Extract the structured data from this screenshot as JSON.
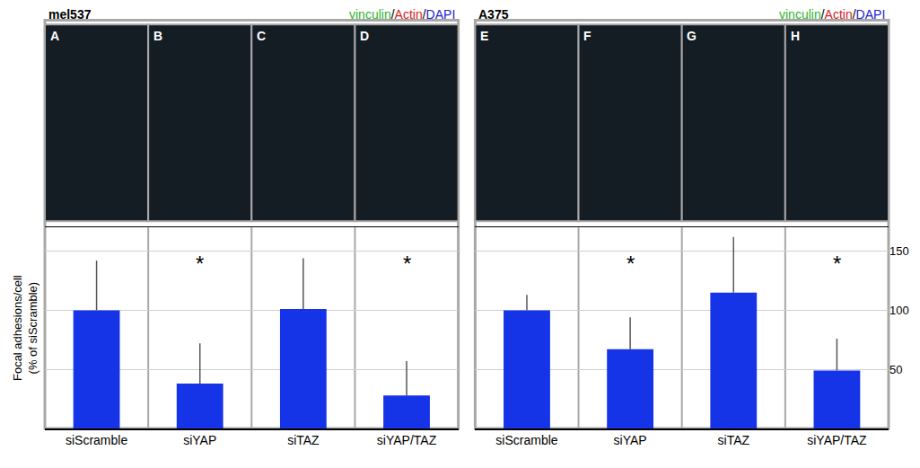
{
  "chart_data": [
    {
      "type": "bar",
      "title": "mel537",
      "stain_label": [
        {
          "text": "vinculin",
          "color": "#2fb52f"
        },
        {
          "text": "/",
          "color": "#000000"
        },
        {
          "text": "Actin",
          "color": "#d42020"
        },
        {
          "text": "/",
          "color": "#000000"
        },
        {
          "text": "DAPI",
          "color": "#2020d4"
        }
      ],
      "panels": [
        "A",
        "B",
        "C",
        "D"
      ],
      "categories": [
        "siScramble",
        "siYAP",
        "siTAZ",
        "siYAP/TAZ"
      ],
      "values": [
        100,
        38,
        101,
        28
      ],
      "error": [
        42,
        34,
        43,
        29
      ],
      "color": "#1534e8",
      "ylabel": "Focal adhesions/cell (% of siScramble)",
      "ylim": [
        0,
        170
      ],
      "yticks": [
        50,
        100,
        150
      ],
      "grid": true,
      "tick_labels": "x",
      "annotations": [
        {
          "category": "siYAP",
          "text": "*"
        },
        {
          "category": "siYAP/TAZ",
          "text": "*"
        }
      ]
    },
    {
      "type": "bar",
      "title": "A375",
      "stain_label": [
        {
          "text": "vinculin",
          "color": "#2fb52f"
        },
        {
          "text": "/",
          "color": "#000000"
        },
        {
          "text": "Actin",
          "color": "#d42020"
        },
        {
          "text": "/",
          "color": "#000000"
        },
        {
          "text": "DAPI",
          "color": "#2020d4"
        }
      ],
      "panels": [
        "E",
        "F",
        "G",
        "H"
      ],
      "categories": [
        "siScramble",
        "siYAP",
        "siTAZ",
        "siYAP/TAZ"
      ],
      "values": [
        100,
        67,
        115,
        49
      ],
      "error": [
        13,
        27,
        47,
        27
      ],
      "color": "#1534e8",
      "ylim": [
        0,
        170
      ],
      "yticks": [
        50,
        100,
        150
      ],
      "grid": true,
      "annotations": [
        {
          "category": "siYAP",
          "text": "*"
        },
        {
          "category": "siYAP/TAZ",
          "text": "*"
        }
      ]
    }
  ]
}
